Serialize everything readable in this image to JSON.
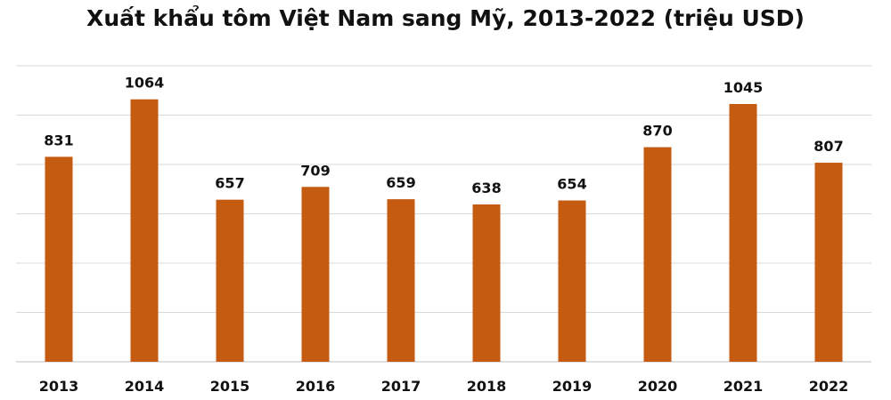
{
  "chart_data": {
    "type": "bar",
    "title": "Xuất khẩu tôm Việt Nam sang Mỹ, 2013-2022 (triệu USD)",
    "categories": [
      "2013",
      "2014",
      "2015",
      "2016",
      "2017",
      "2018",
      "2019",
      "2020",
      "2021",
      "2022"
    ],
    "values": [
      831,
      1064,
      657,
      709,
      659,
      638,
      654,
      870,
      1045,
      807
    ],
    "ylim": [
      0,
      1200
    ],
    "grid": true,
    "legend": "none",
    "bar_color": "#c55a11"
  }
}
